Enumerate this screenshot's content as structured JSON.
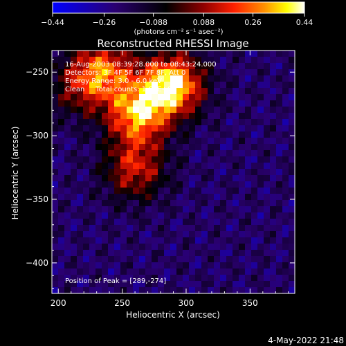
{
  "chart_data": {
    "type": "heatmap",
    "title": "Reconstructed RHESSI Image",
    "xlabel": "Heliocentric X (arcsec)",
    "ylabel": "Heliocentric Y (arcsec)",
    "xlim": [
      195,
      385
    ],
    "ylim": [
      -424,
      -233
    ],
    "x_ticks": [
      200,
      250,
      300,
      350
    ],
    "x_tick_labels": [
      "200",
      "250",
      "300",
      "350"
    ],
    "y_ticks": [
      -250,
      -300,
      -350,
      -400
    ],
    "y_tick_labels": [
      "−250",
      "−300",
      "−350",
      "−400"
    ],
    "colorbar": {
      "range": [
        -0.44,
        0.44
      ],
      "ticks": [
        -0.44,
        -0.26,
        -0.088,
        0.088,
        0.26,
        0.44
      ],
      "tick_labels": [
        "−0.44",
        "−0.26",
        "−0.088",
        "0.088",
        "0.26",
        "0.44"
      ],
      "unit_label": "(photons cm⁻² s⁻¹ asec⁻²)",
      "colormap": [
        "#0000ff",
        "#2a0070",
        "#000000",
        "#800000",
        "#ff0000",
        "#ff8000",
        "#ffff00",
        "#ffffff"
      ]
    },
    "peak": {
      "x": 289,
      "y": -274
    },
    "flux_estimate": {
      "background": -0.2,
      "sources": [
        {
          "x": 289,
          "y": -260,
          "amplitude": 0.62
        },
        {
          "x": 262,
          "y": -283,
          "amplitude": 0.5
        },
        {
          "x": 236,
          "y": -248,
          "amplitude": 0.4
        },
        {
          "x": 260,
          "y": -326,
          "amplitude": 0.34
        },
        {
          "x": 216,
          "y": -262,
          "amplitude": 0.22
        }
      ]
    }
  },
  "annotations": {
    "time": "16-Aug-2003 08:39:28.000 to 08:43:24.000",
    "detectors": "Detectors: 3F 4F 5F 6F 7F 8F, Att 0",
    "energy": "Energy Range: 3.0 - 6.0 keV",
    "clean": "Clean     Total counts: 1.62E+04",
    "peak": "Position of Peak = [289,-274]"
  },
  "footer": {
    "timestamp": "4-May-2022 21:48"
  }
}
